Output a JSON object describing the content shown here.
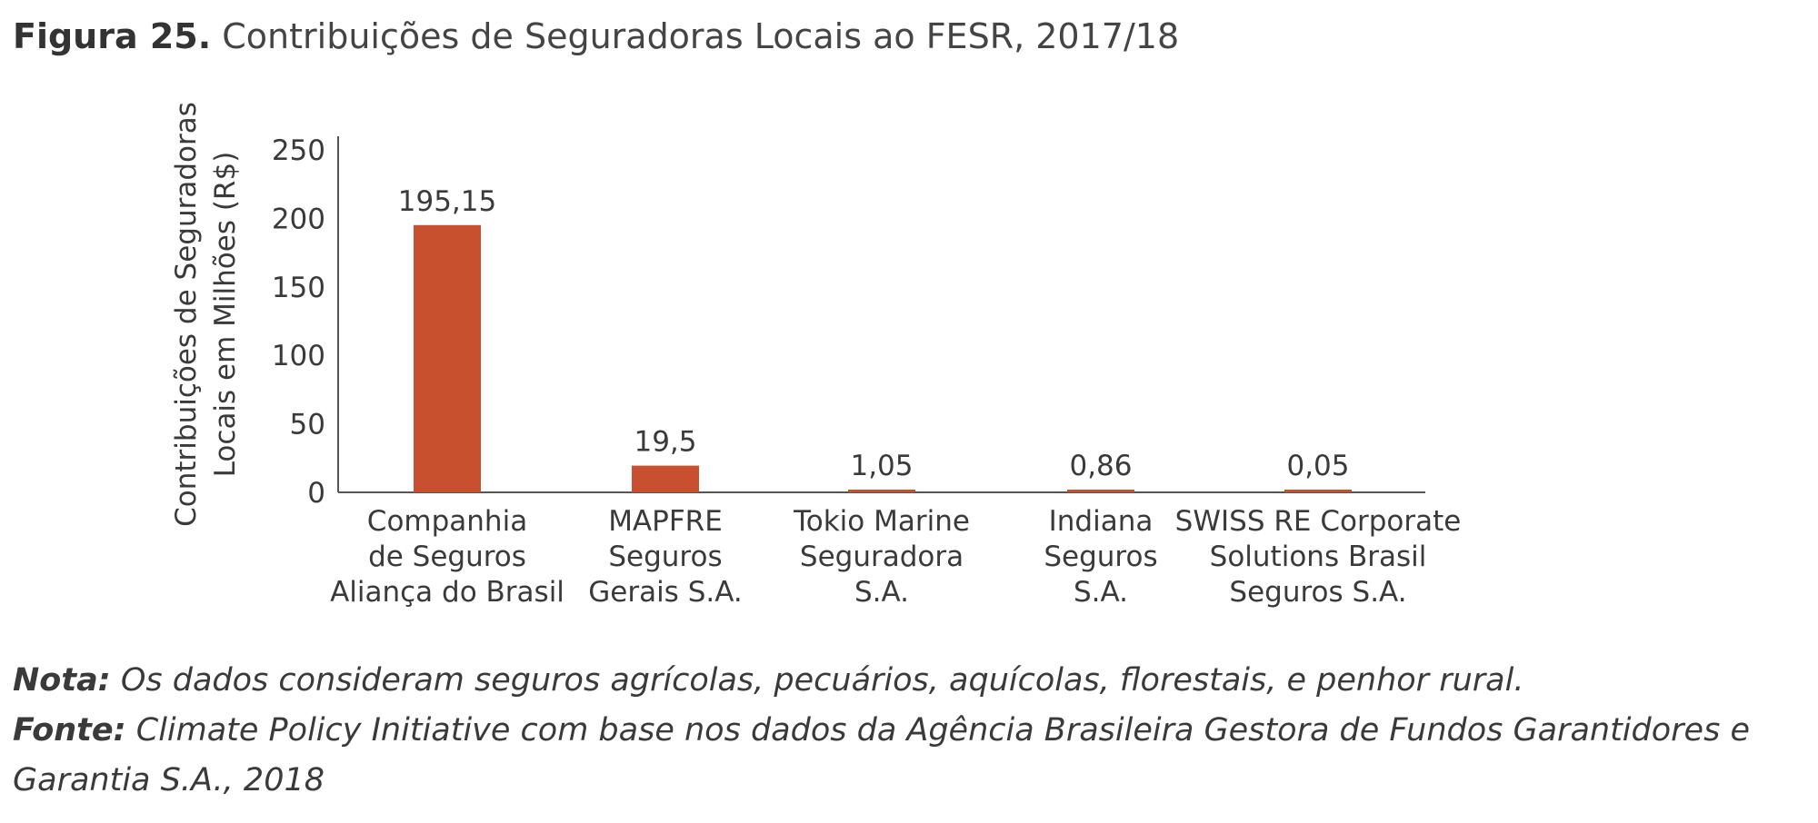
{
  "figure": {
    "number": "Figura 25.",
    "title": "Contribuições de Seguradoras Locais ao FESR, 2017/18"
  },
  "chart_data": {
    "type": "bar",
    "title": "",
    "ylabel_lines": [
      "Contribuições de Seguradoras",
      "Locais em Milhões (R$)"
    ],
    "xlabel": "",
    "ylim": [
      0,
      260
    ],
    "yticks": [
      0,
      50,
      100,
      150,
      200,
      250
    ],
    "ytick_labels": [
      "0",
      "50",
      "100",
      "150",
      "200",
      "250"
    ],
    "categories": [
      [
        "Companhia",
        "de Seguros",
        "Aliança do Brasil"
      ],
      [
        "MAPFRE",
        "Seguros",
        "Gerais S.A."
      ],
      [
        "Tokio Marine",
        "Seguradora",
        "S.A."
      ],
      [
        "Indiana",
        "Seguros",
        "S.A."
      ],
      [
        "SWISS RE Corporate",
        "Solutions Brasil",
        "Seguros S.A."
      ]
    ],
    "values": [
      195.15,
      19.5,
      1.05,
      0.86,
      0.05
    ],
    "value_labels": [
      "195,15",
      "19,5",
      "1,05",
      "0,86",
      "0,05"
    ],
    "bar_color": "#c8502e",
    "grid": false,
    "legend": "none"
  },
  "footnotes": {
    "nota_label": "Nota:",
    "nota_text": " Os dados consideram seguros agrícolas, pecuários, aquícolas, florestais, e penhor rural.",
    "fonte_label": "Fonte:",
    "fonte_text": " Climate Policy Initiative com base nos dados da Agência Brasileira Gestora de Fundos Garantidores e Garantia S.A., 2018"
  }
}
